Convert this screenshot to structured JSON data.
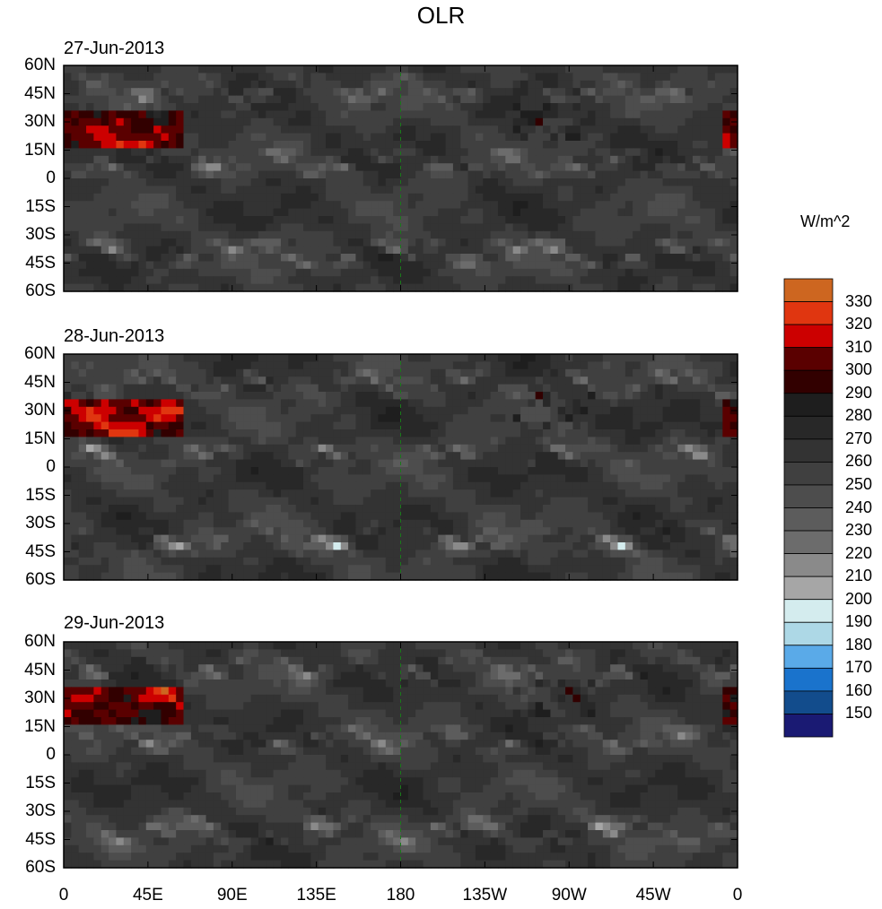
{
  "title": "OLR",
  "units": "W/m^2",
  "panels": [
    {
      "date": "27-Jun-2013",
      "seed": 1
    },
    {
      "date": "28-Jun-2013",
      "seed": 2
    },
    {
      "date": "29-Jun-2013",
      "seed": 3
    }
  ],
  "lat_ticks": [
    "60N",
    "45N",
    "30N",
    "15N",
    "0",
    "15S",
    "30S",
    "45S",
    "60S"
  ],
  "lon_ticks": [
    "0",
    "45E",
    "90E",
    "135E",
    "180",
    "135W",
    "90W",
    "45W",
    "0"
  ],
  "chart_data": {
    "type": "heatmap",
    "variable": "OLR",
    "units": "W/m^2",
    "lat_range": [
      -60,
      60
    ],
    "lon_range": [
      0,
      360
    ],
    "colorbar": {
      "levels": [
        150,
        160,
        170,
        180,
        190,
        200,
        210,
        220,
        230,
        240,
        250,
        260,
        270,
        280,
        290,
        300,
        310,
        320,
        330
      ],
      "labels": [
        "330",
        "320",
        "310",
        "300",
        "290",
        "280",
        "270",
        "260",
        "250",
        "240",
        "230",
        "220",
        "210",
        "200",
        "190",
        "180",
        "170",
        "160",
        "150"
      ],
      "colors": [
        "#1a1a73",
        "#124c8c",
        "#1a73cc",
        "#5aaae8",
        "#add8e6",
        "#d4ecee",
        "#a6a6a6",
        "#8a8a8a",
        "#6c6c6c",
        "#5c5c5c",
        "#4d4d4d",
        "#404040",
        "#333333",
        "#282828",
        "#1e1e1e",
        "#320000",
        "#5a0000",
        "#cc0000",
        "#e03610",
        "#cd6620"
      ]
    }
  }
}
